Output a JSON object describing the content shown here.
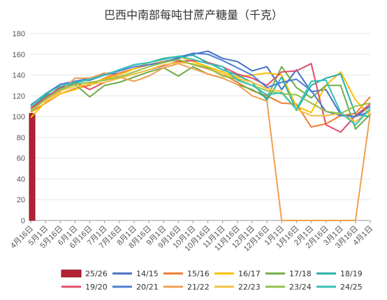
{
  "chart_data": {
    "type": "line",
    "title": "巴西中南部每吨甘蔗产糖量（千克）",
    "xlabel": "",
    "ylabel": "",
    "ylim": [
      0,
      180
    ],
    "yticks": [
      0,
      20,
      40,
      60,
      80,
      100,
      120,
      140,
      160,
      180
    ],
    "grid": "horizontal",
    "legend_position": "bottom",
    "categories": [
      "4月16日",
      "5月1日",
      "5月16日",
      "6月1日",
      "6月16日",
      "7月1日",
      "7月16日",
      "8月1日",
      "8月16日",
      "9月1日",
      "9月16日",
      "10月1日",
      "10月16日",
      "11月1日",
      "11月16日",
      "12月1日",
      "12月16日",
      "1月1日",
      "1月16日",
      "2月1日",
      "2月16日",
      "3月1日",
      "3月16日",
      "4月1日"
    ],
    "series": [
      {
        "name": "25/26",
        "color": "#b22234",
        "style": "bar",
        "values": [
          103,
          null,
          null,
          null,
          null,
          null,
          null,
          null,
          null,
          null,
          null,
          null,
          null,
          null,
          null,
          null,
          null,
          null,
          null,
          null,
          null,
          null,
          null,
          null
        ]
      },
      {
        "name": "14/15",
        "color": "#4472c4",
        "values": [
          111,
          121,
          131,
          134,
          135,
          140,
          142,
          146,
          150,
          153,
          156,
          160,
          163,
          156,
          153,
          144,
          148,
          126,
          145,
          124,
          126,
          102,
          100,
          110
        ]
      },
      {
        "name": "15/16",
        "color": "#ed7d31",
        "values": [
          104,
          113,
          122,
          127,
          130,
          137,
          142,
          146,
          150,
          153,
          154,
          150,
          146,
          141,
          133,
          125,
          120,
          113,
          112,
          90,
          93,
          101,
          103,
          119
        ]
      },
      {
        "name": "16/17",
        "color": "#ffc000",
        "values": [
          99,
          114,
          122,
          126,
          132,
          136,
          140,
          146,
          152,
          156,
          158,
          153,
          148,
          143,
          138,
          140,
          142,
          140,
          110,
          104,
          130,
          143,
          116,
          101
        ]
      },
      {
        "name": "17/18",
        "color": "#70ad47",
        "values": [
          106,
          119,
          127,
          131,
          119,
          130,
          133,
          138,
          143,
          147,
          139,
          148,
          141,
          137,
          131,
          126,
          118,
          148,
          128,
          118,
          130,
          130,
          88,
          102
        ]
      },
      {
        "name": "18/19",
        "color": "#2ab0a8",
        "values": [
          108,
          120,
          126,
          132,
          136,
          140,
          145,
          150,
          152,
          156,
          158,
          159,
          152,
          145,
          140,
          133,
          116,
          138,
          106,
          130,
          137,
          141,
          102,
          100
        ]
      },
      {
        "name": "19/20",
        "color": "#e04d6a",
        "values": [
          108,
          118,
          128,
          133,
          126,
          133,
          137,
          141,
          145,
          149,
          153,
          154,
          152,
          148,
          141,
          137,
          130,
          143,
          144,
          151,
          92,
          85,
          101,
          112
        ]
      },
      {
        "name": "20/21",
        "color": "#4a7ed6",
        "values": [
          111,
          122,
          131,
          134,
          137,
          141,
          144,
          148,
          150,
          152,
          157,
          161,
          160,
          154,
          147,
          140,
          128,
          133,
          136,
          125,
          105,
          101,
          100,
          105
        ]
      },
      {
        "name": "21/22",
        "color": "#f0a050",
        "values": [
          106,
          116,
          124,
          137,
          137,
          142,
          138,
          134,
          139,
          147,
          151,
          146,
          141,
          137,
          131,
          120,
          115,
          0,
          0,
          0,
          0,
          0,
          0,
          103
        ]
      },
      {
        "name": "22/23",
        "color": "#f5c242",
        "values": [
          104,
          117,
          125,
          129,
          131,
          133,
          137,
          141,
          145,
          150,
          152,
          151,
          147,
          141,
          137,
          133,
          127,
          124,
          107,
          101,
          101,
          103,
          95,
          106
        ]
      },
      {
        "name": "23/24",
        "color": "#8ec24a",
        "values": [
          105,
          117,
          126,
          131,
          133,
          135,
          138,
          143,
          148,
          152,
          155,
          150,
          147,
          139,
          136,
          130,
          125,
          122,
          121,
          113,
          105,
          103,
          110,
          113
        ]
      },
      {
        "name": "24/25",
        "color": "#36c2b4",
        "values": [
          110,
          122,
          129,
          133,
          136,
          140,
          145,
          150,
          152,
          155,
          158,
          155,
          151,
          148,
          135,
          130,
          121,
          123,
          107,
          134,
          135,
          104,
          92,
          108
        ]
      }
    ]
  }
}
